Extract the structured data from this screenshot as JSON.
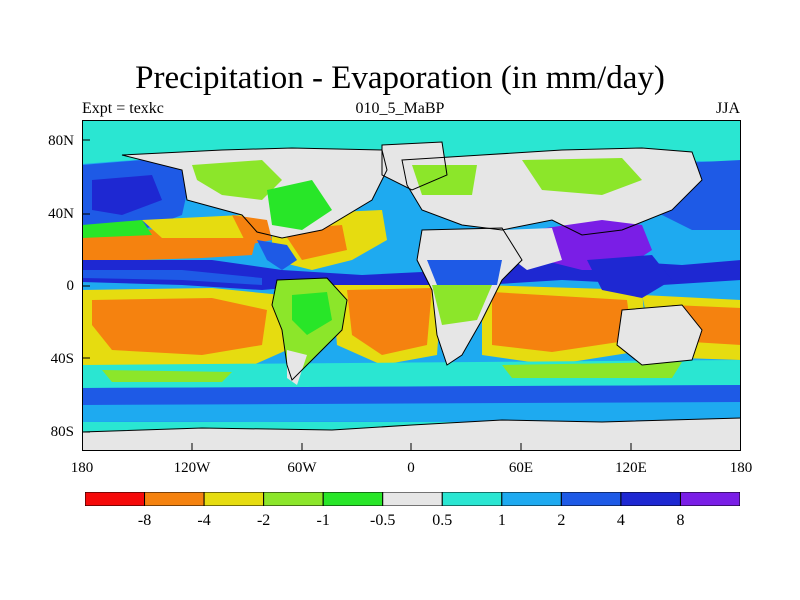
{
  "title": "Precipitation - Evaporation (in mm/day)",
  "subtitle_left": "Expt = texkc",
  "subtitle_center": "010_5_MaBP",
  "subtitle_right": "JJA",
  "y_axis_labels": [
    "80N",
    "40N",
    "0",
    "40S",
    "80S"
  ],
  "x_axis_labels": [
    "180",
    "120W",
    "60W",
    "0",
    "60E",
    "120E",
    "180"
  ],
  "colorbar": {
    "colors": [
      "#f50a0a",
      "#f5820f",
      "#e6dc10",
      "#8ce62a",
      "#28e628",
      "#e6e6e6",
      "#2ae6d2",
      "#1eaaf0",
      "#1e5ae6",
      "#1e28d2",
      "#7a1ee6"
    ],
    "labels": [
      "-8",
      "-4",
      "-2",
      "-1",
      "-0.5",
      "0.5",
      "1",
      "2",
      "4",
      "8"
    ]
  }
}
